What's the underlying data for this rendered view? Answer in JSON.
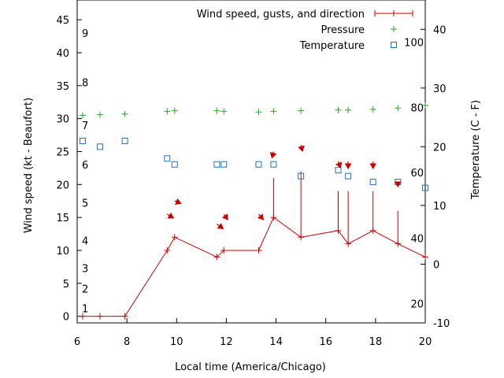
{
  "chart_data": {
    "type": "line",
    "xlabel": "Local time (America/Chicago)",
    "ylabel_left": "Wind speed (kt - Beaufort)",
    "ylabel_right": "Temperature (C - F)",
    "xlim": [
      6,
      20
    ],
    "ylim_left": [
      -1,
      48
    ],
    "ylim_right": [
      -10,
      45
    ],
    "x_ticks": [
      6,
      8,
      10,
      12,
      14,
      16,
      18,
      20
    ],
    "y_ticks_left": [
      0,
      5,
      10,
      15,
      20,
      25,
      30,
      35,
      40,
      45
    ],
    "y_ticks_right": [
      -10,
      0,
      10,
      20,
      30,
      40
    ],
    "beaufort_labels": [
      {
        "label": "1",
        "kt": 1.2
      },
      {
        "label": "2",
        "kt": 4.2
      },
      {
        "label": "3",
        "kt": 7.3
      },
      {
        "label": "4",
        "kt": 11.5
      },
      {
        "label": "5",
        "kt": 17.2
      },
      {
        "label": "6",
        "kt": 23.0
      },
      {
        "label": "7",
        "kt": 29.0
      },
      {
        "label": "8",
        "kt": 35.5
      },
      {
        "label": "9",
        "kt": 43.0
      }
    ],
    "fahrenheit_labels": [
      {
        "label": "20",
        "temp_c": -6.7
      },
      {
        "label": "40",
        "temp_c": 4.4
      },
      {
        "label": "60",
        "temp_c": 15.6
      },
      {
        "label": "80",
        "temp_c": 26.7
      },
      {
        "label": "100",
        "temp_c": 37.8
      }
    ],
    "legend": [
      {
        "label": "Wind speed, gusts, and direction",
        "color": "#cc0000",
        "marker": "line-plus"
      },
      {
        "label": "Pressure",
        "color": "#22aa22",
        "marker": "plus"
      },
      {
        "label": "Temperature",
        "color": "#1f6fbf",
        "marker": "square"
      }
    ],
    "series": [
      {
        "name": "Wind speed, gusts, and direction",
        "color": "#cc0000",
        "points": [
          {
            "x": 6.22,
            "y": 0
          },
          {
            "x": 6.92,
            "y": 0
          },
          {
            "x": 7.92,
            "y": 0
          },
          {
            "x": 9.62,
            "y": 10
          },
          {
            "x": 9.92,
            "y": 12
          },
          {
            "x": 11.62,
            "y": 9
          },
          {
            "x": 11.9,
            "y": 10
          },
          {
            "x": 13.3,
            "y": 10
          },
          {
            "x": 13.9,
            "y": 15,
            "gust": 21
          },
          {
            "x": 15.0,
            "y": 12,
            "gust": 22
          },
          {
            "x": 16.5,
            "y": 13,
            "gust": 19
          },
          {
            "x": 16.9,
            "y": 11,
            "gust": 19
          },
          {
            "x": 17.9,
            "y": 13,
            "gust": 19
          },
          {
            "x": 18.9,
            "y": 11,
            "gust": 16
          },
          {
            "x": 20.0,
            "y": 9
          }
        ]
      },
      {
        "name": "Pressure",
        "color": "#22aa22",
        "points": [
          {
            "x": 6.22,
            "y": 30.5
          },
          {
            "x": 6.92,
            "y": 30.6
          },
          {
            "x": 7.92,
            "y": 30.7
          },
          {
            "x": 9.62,
            "y": 31.1
          },
          {
            "x": 9.92,
            "y": 31.2
          },
          {
            "x": 11.62,
            "y": 31.2
          },
          {
            "x": 11.9,
            "y": 31.1
          },
          {
            "x": 13.3,
            "y": 31.0
          },
          {
            "x": 13.9,
            "y": 31.1
          },
          {
            "x": 15.0,
            "y": 31.2
          },
          {
            "x": 16.5,
            "y": 31.3
          },
          {
            "x": 16.9,
            "y": 31.3
          },
          {
            "x": 17.9,
            "y": 31.4
          },
          {
            "x": 18.9,
            "y": 31.6
          },
          {
            "x": 20.0,
            "y": 32.0
          }
        ]
      },
      {
        "name": "Temperature",
        "color": "#1f6fbf",
        "points": [
          {
            "x": 6.22,
            "y": 21
          },
          {
            "x": 6.92,
            "y": 20
          },
          {
            "x": 7.92,
            "y": 21
          },
          {
            "x": 9.62,
            "y": 18
          },
          {
            "x": 9.92,
            "y": 17
          },
          {
            "x": 11.62,
            "y": 17
          },
          {
            "x": 11.9,
            "y": 17
          },
          {
            "x": 13.3,
            "y": 17
          },
          {
            "x": 13.9,
            "y": 17
          },
          {
            "x": 15.0,
            "y": 15
          },
          {
            "x": 16.5,
            "y": 16
          },
          {
            "x": 16.9,
            "y": 15
          },
          {
            "x": 17.9,
            "y": 14
          },
          {
            "x": 18.9,
            "y": 14
          },
          {
            "x": 20.0,
            "y": 13
          }
        ]
      }
    ],
    "direction_arrows": [
      {
        "x": 9.62,
        "y": 15.5,
        "dx": 8,
        "dy": 5
      },
      {
        "x": 9.92,
        "y": 17.5,
        "dx": 8,
        "dy": 3
      },
      {
        "x": 11.62,
        "y": 14.0,
        "dx": 8,
        "dy": 6
      },
      {
        "x": 11.9,
        "y": 15.5,
        "dx": 5,
        "dy": 7
      },
      {
        "x": 13.3,
        "y": 15.5,
        "dx": 6,
        "dy": 7
      },
      {
        "x": 13.9,
        "y": 25.0,
        "dx": -2,
        "dy": 8
      },
      {
        "x": 15.0,
        "y": 26.0,
        "dx": 2,
        "dy": 8
      },
      {
        "x": 16.5,
        "y": 23.5,
        "dx": 3,
        "dy": 8
      },
      {
        "x": 16.9,
        "y": 23.5,
        "dx": 0,
        "dy": 9
      },
      {
        "x": 17.9,
        "y": 23.5,
        "dx": 0,
        "dy": 9
      },
      {
        "x": 18.9,
        "y": 20.5,
        "dx": 0,
        "dy": 7
      }
    ]
  }
}
